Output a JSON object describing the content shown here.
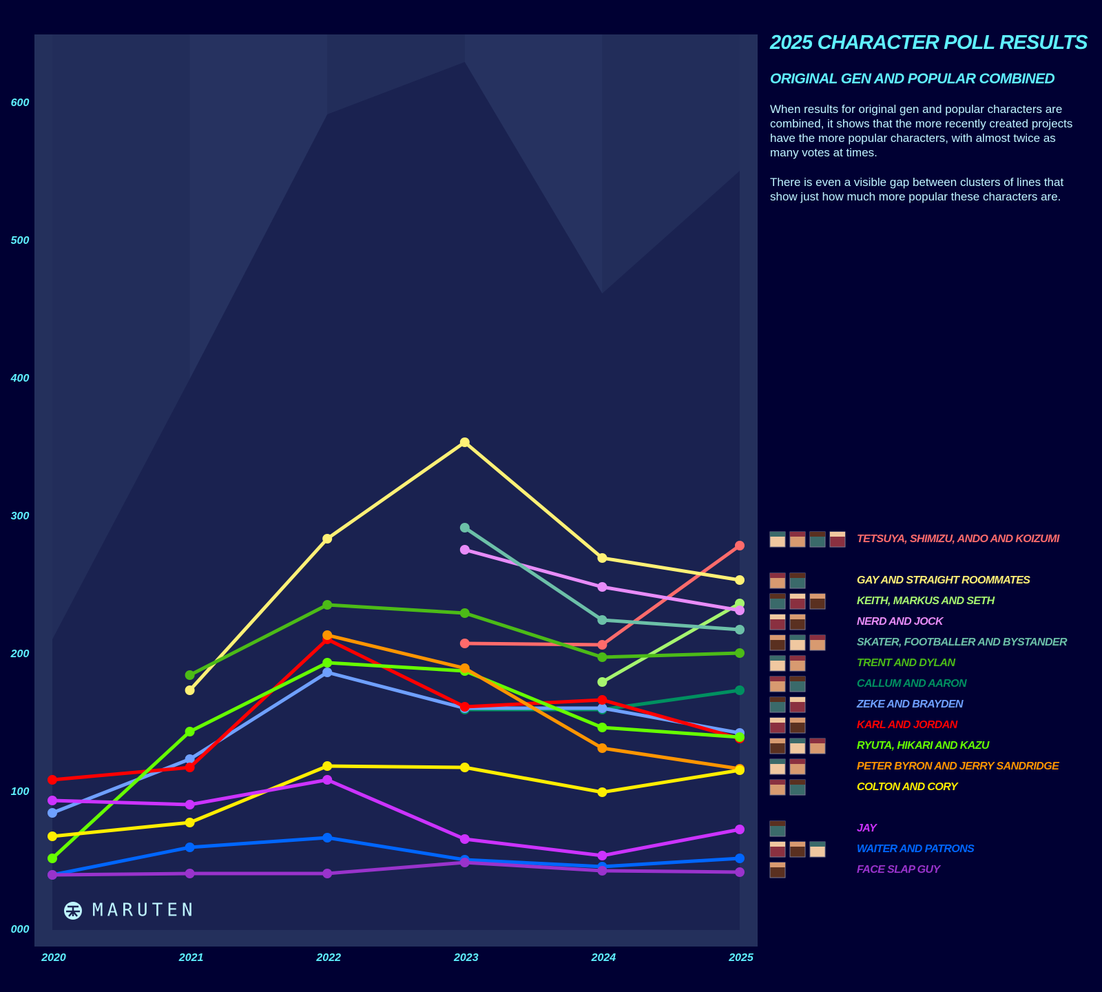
{
  "chart_data": {
    "type": "line",
    "title": "2025 CHARACTER POLL RESULTS",
    "subtitle": "ORIGINAL GEN AND POPULAR COMBINED",
    "description": [
      "When results for original gen and popular characters are combined, it shows that the more recently created projects have the more popular characters, with almost twice as many votes at times.",
      "There is even a visible gap between clusters of lines that show just how much more popular these characters are."
    ],
    "watermark": "MARUTEN",
    "categories": [
      "2020",
      "2021",
      "2022",
      "2023",
      "2024",
      "2025"
    ],
    "ylim": [
      0,
      650
    ],
    "yticks": [
      {
        "value": 0,
        "label": "000"
      },
      100,
      200,
      300,
      400,
      500,
      600
    ],
    "area_values": [
      211,
      400,
      592,
      630,
      462,
      551
    ],
    "series": [
      {
        "name": "TETSUYA, SHIMIZU, ANDO AND KOIZUMI",
        "color": "#ff6b6b",
        "values": [
          null,
          null,
          null,
          208,
          207,
          279
        ]
      },
      {
        "name": "GAY AND STRAIGHT ROOMMATES",
        "color": "#fff176",
        "values": [
          null,
          174,
          284,
          354,
          270,
          254
        ]
      },
      {
        "name": "KEITH, MARKUS AND SETH",
        "color": "#a6f56f",
        "values": [
          null,
          null,
          null,
          null,
          180,
          237
        ]
      },
      {
        "name": "NERD AND JOCK",
        "color": "#e88cf8",
        "values": [
          null,
          null,
          null,
          276,
          249,
          232
        ]
      },
      {
        "name": "SKATER, FOOTBALLER AND BYSTANDER",
        "color": "#6cc0a8",
        "values": [
          null,
          null,
          null,
          292,
          225,
          218
        ]
      },
      {
        "name": "TRENT AND DYLAN",
        "color": "#4cbb17",
        "values": [
          null,
          185,
          236,
          230,
          198,
          201
        ]
      },
      {
        "name": "CALLUM AND AARON",
        "color": "#009060",
        "values": [
          null,
          null,
          null,
          160,
          160,
          174
        ]
      },
      {
        "name": "ZEKE AND BRAYDEN",
        "color": "#6fa0ff",
        "values": [
          85,
          124,
          187,
          161,
          161,
          143
        ]
      },
      {
        "name": "KARL AND JORDAN",
        "color": "#ff0000",
        "values": [
          109,
          118,
          211,
          162,
          167,
          139
        ]
      },
      {
        "name": "RYUTA, HIKARI AND KAZU",
        "color": "#66ff00",
        "values": [
          52,
          144,
          194,
          188,
          147,
          140
        ]
      },
      {
        "name": "PETER BYRON AND JERRY SANDRIDGE",
        "color": "#ff9500",
        "values": [
          null,
          null,
          214,
          190,
          132,
          117
        ]
      },
      {
        "name": "COLTON AND CORY",
        "color": "#ffee00",
        "values": [
          68,
          78,
          119,
          118,
          100,
          116
        ]
      },
      {
        "name": "JAY",
        "color": "#cc33ff",
        "values": [
          94,
          91,
          109,
          66,
          54,
          73
        ]
      },
      {
        "name": "WAITER AND PATRONS",
        "color": "#0066ff",
        "values": [
          40,
          60,
          67,
          51,
          46,
          52
        ]
      },
      {
        "name": "FACE SLAP GUY",
        "color": "#9933cc",
        "values": [
          40,
          41,
          41,
          49,
          43,
          42
        ]
      }
    ]
  }
}
